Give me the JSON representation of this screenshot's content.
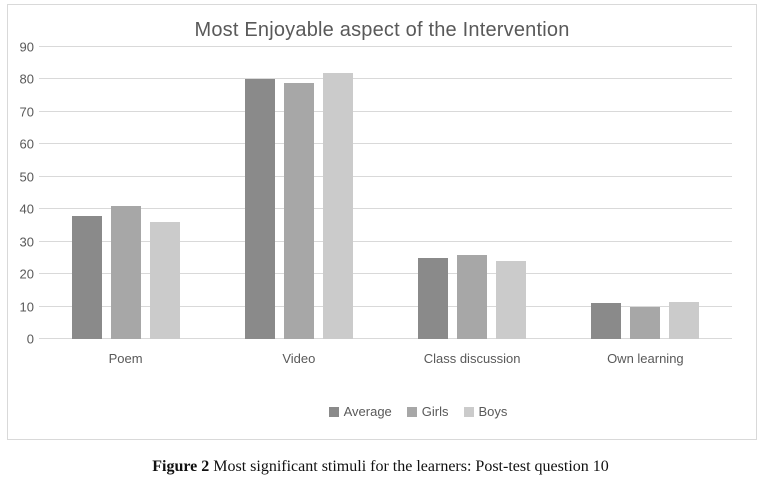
{
  "chart_data": {
    "type": "bar",
    "title": "Most Enjoyable aspect of the Intervention",
    "categories": [
      "Poem",
      "Video",
      "Class discussion",
      "Own learning"
    ],
    "series": [
      {
        "name": "Average",
        "color": "#8a8a8a",
        "values": [
          38,
          80,
          25,
          11
        ]
      },
      {
        "name": "Girls",
        "color": "#a7a7a7",
        "values": [
          41,
          79,
          26,
          10
        ]
      },
      {
        "name": "Boys",
        "color": "#cbcbcb",
        "values": [
          36,
          82,
          24,
          11.5
        ]
      }
    ],
    "xlabel": "",
    "ylabel": "",
    "ylim": [
      0,
      90
    ],
    "ytick_step": 10,
    "grid": true,
    "legend_position": "bottom"
  },
  "caption": {
    "label": "Figure 2",
    "text": " Most significant stimuli for the learners: Post-test question 10"
  },
  "colors": {
    "text": "#595959",
    "grid": "#d9d9d9",
    "border": "#d9d9d9",
    "background": "#ffffff"
  }
}
